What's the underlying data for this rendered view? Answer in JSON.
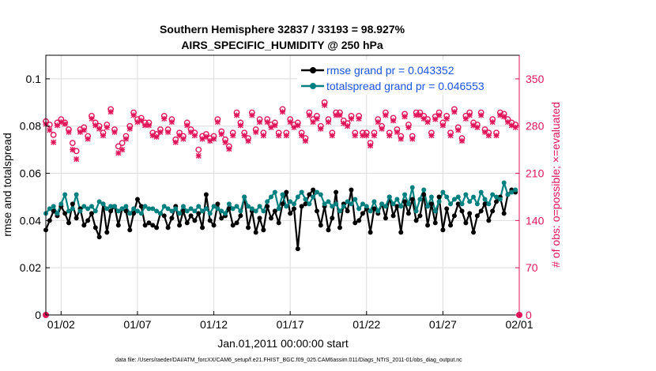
{
  "chart_data": {
    "type": "line",
    "title": "Southern Hemisphere 32837 / 33193 = 98.927%",
    "subtitle": "AIRS_SPECIFIC_HUMIDITY @ 250 hPa",
    "xlabel": "Jan.01,2011 00:00:00 start",
    "ylabel": "rmse and totalspread",
    "y2label": "# of obs: o=possible; ×=evaluated",
    "footer": "data file: /Users/raeder/DAI/ATM_forcXX/CAM6_setup/f.e21.FHIST_BGC.f09_025.CAM6assim.011/Diags_NTrS_2011-01/obs_diag_output.nc",
    "x_range": [
      0.5,
      31.5
    ],
    "ylim": [
      0,
      0.11
    ],
    "y2lim": [
      0,
      385
    ],
    "x_ticks": [
      {
        "x": 1.5,
        "label": "01/02"
      },
      {
        "x": 6.5,
        "label": "01/07"
      },
      {
        "x": 11.5,
        "label": "01/12"
      },
      {
        "x": 16.5,
        "label": "01/17"
      },
      {
        "x": 21.5,
        "label": "01/22"
      },
      {
        "x": 26.5,
        "label": "01/27"
      },
      {
        "x": 31.5,
        "label": "02/01"
      }
    ],
    "y_ticks": [
      "0",
      "0.02",
      "0.04",
      "0.06",
      "0.08",
      "0.1"
    ],
    "y_tick_values": [
      0,
      0.02,
      0.04,
      0.06,
      0.08,
      0.1
    ],
    "y2_ticks": [
      "0",
      "70",
      "140",
      "210",
      "280",
      "350"
    ],
    "y2_tick_values": [
      0,
      70,
      140,
      210,
      280,
      350
    ],
    "grid": true,
    "legend_position": "top-right",
    "colors": {
      "rmse": "#000000",
      "spread": "#008080",
      "obs": "#e0155a",
      "right_axis": "#e0155a",
      "legend_text": "#1a55e0"
    },
    "x": [
      0.5,
      0.75,
      1,
      1.25,
      1.5,
      1.75,
      2,
      2.25,
      2.5,
      2.75,
      3,
      3.25,
      3.5,
      3.75,
      4,
      4.25,
      4.5,
      4.75,
      5,
      5.25,
      5.5,
      5.75,
      6,
      6.25,
      6.5,
      6.75,
      7,
      7.25,
      7.5,
      7.75,
      8,
      8.25,
      8.5,
      8.75,
      9,
      9.25,
      9.5,
      9.75,
      10,
      10.25,
      10.5,
      10.75,
      11,
      11.25,
      11.5,
      11.75,
      12,
      12.25,
      12.5,
      12.75,
      13,
      13.25,
      13.5,
      13.75,
      14,
      14.25,
      14.5,
      14.75,
      15,
      15.25,
      15.5,
      15.75,
      16,
      16.25,
      16.5,
      16.75,
      17,
      17.25,
      17.5,
      17.75,
      18,
      18.25,
      18.5,
      18.75,
      19,
      19.25,
      19.5,
      19.75,
      20,
      20.25,
      20.5,
      20.75,
      21,
      21.25,
      21.5,
      21.75,
      22,
      22.25,
      22.5,
      22.75,
      23,
      23.25,
      23.5,
      23.75,
      24,
      24.25,
      24.5,
      24.75,
      25,
      25.25,
      25.5,
      25.75,
      26,
      26.25,
      26.5,
      26.75,
      27,
      27.25,
      27.5,
      27.75,
      28,
      28.25,
      28.5,
      28.75,
      29,
      29.25,
      29.5,
      29.75,
      30,
      30.25,
      30.5,
      30.75,
      31,
      31.25
    ],
    "series": [
      {
        "name": "rmse grand pr = 0.043352",
        "values": [
          0.036,
          0.04,
          0.044,
          0.042,
          0.046,
          0.043,
          0.039,
          0.047,
          0.041,
          0.045,
          0.038,
          0.04,
          0.043,
          0.037,
          0.033,
          0.047,
          0.035,
          0.044,
          0.046,
          0.038,
          0.045,
          0.044,
          0.036,
          0.043,
          0.049,
          0.046,
          0.038,
          0.039,
          0.038,
          0.037,
          0.043,
          0.042,
          0.037,
          0.041,
          0.046,
          0.038,
          0.044,
          0.039,
          0.042,
          0.04,
          0.043,
          0.037,
          0.051,
          0.04,
          0.038,
          0.047,
          0.041,
          0.042,
          0.045,
          0.038,
          0.039,
          0.042,
          0.05,
          0.037,
          0.044,
          0.035,
          0.041,
          0.036,
          0.046,
          0.041,
          0.044,
          0.039,
          0.047,
          0.052,
          0.043,
          0.045,
          0.028,
          0.046,
          0.047,
          0.051,
          0.053,
          0.044,
          0.038,
          0.046,
          0.036,
          0.041,
          0.052,
          0.037,
          0.047,
          0.044,
          0.053,
          0.039,
          0.04,
          0.043,
          0.045,
          0.035,
          0.045,
          0.043,
          0.047,
          0.041,
          0.05,
          0.042,
          0.046,
          0.035,
          0.048,
          0.043,
          0.049,
          0.04,
          0.042,
          0.051,
          0.038,
          0.047,
          0.039,
          0.05,
          0.036,
          0.045,
          0.038,
          0.042,
          0.047,
          0.044,
          0.039,
          0.043,
          0.035,
          0.042,
          0.044,
          0.047,
          0.04,
          0.044,
          0.048,
          0.05,
          0.043,
          0.051,
          0.053,
          0.052
        ]
      },
      {
        "name": "totalspread grand pr = 0.046553",
        "values": [
          0.043,
          0.045,
          0.046,
          0.043,
          0.047,
          0.051,
          0.044,
          0.045,
          0.051,
          0.044,
          0.046,
          0.045,
          0.046,
          0.044,
          0.048,
          0.047,
          0.045,
          0.046,
          0.046,
          0.044,
          0.045,
          0.046,
          0.043,
          0.045,
          0.044,
          0.043,
          0.046,
          0.045,
          0.045,
          0.044,
          0.043,
          0.046,
          0.045,
          0.044,
          0.045,
          0.043,
          0.046,
          0.044,
          0.045,
          0.044,
          0.046,
          0.044,
          0.045,
          0.043,
          0.046,
          0.045,
          0.044,
          0.043,
          0.047,
          0.045,
          0.046,
          0.044,
          0.05,
          0.046,
          0.045,
          0.044,
          0.046,
          0.044,
          0.048,
          0.05,
          0.052,
          0.045,
          0.051,
          0.046,
          0.048,
          0.047,
          0.05,
          0.052,
          0.049,
          0.047,
          0.05,
          0.052,
          0.051,
          0.047,
          0.048,
          0.046,
          0.047,
          0.044,
          0.046,
          0.048,
          0.047,
          0.049,
          0.045,
          0.047,
          0.046,
          0.044,
          0.048,
          0.044,
          0.047,
          0.046,
          0.05,
          0.047,
          0.049,
          0.046,
          0.051,
          0.047,
          0.054,
          0.044,
          0.049,
          0.053,
          0.046,
          0.05,
          0.044,
          0.048,
          0.052,
          0.05,
          0.047,
          0.049,
          0.05,
          0.047,
          0.051,
          0.048,
          0.05,
          0.047,
          0.052,
          0.049,
          0.047,
          0.051,
          0.05,
          0.049,
          0.056,
          0.051,
          0.052,
          0.053
        ]
      },
      {
        "name": "possible",
        "marker": "o",
        "values": [
          287,
          282,
          267,
          285,
          290,
          285,
          275,
          255,
          243,
          275,
          278,
          265,
          295,
          285,
          280,
          270,
          282,
          305,
          275,
          250,
          255,
          265,
          280,
          300,
          290,
          292,
          285,
          285,
          270,
          268,
          275,
          295,
          275,
          290,
          260,
          270,
          265,
          285,
          275,
          270,
          245,
          265,
          268,
          262,
          265,
          290,
          272,
          260,
          250,
          270,
          300,
          285,
          270,
          262,
          300,
          275,
          290,
          270,
          290,
          282,
          285,
          270,
          305,
          270,
          290,
          282,
          285,
          270,
          262,
          300,
          290,
          295,
          280,
          315,
          290,
          270,
          300,
          300,
          288,
          284,
          295,
          270,
          295,
          270,
          270,
          255,
          270,
          290,
          280,
          300,
          270,
          292,
          275,
          265,
          298,
          282,
          265,
          300,
          300,
          295,
          290,
          270,
          294,
          300,
          285,
          295,
          270,
          305,
          278,
          262,
          295,
          300,
          285,
          282,
          300,
          275,
          270,
          290,
          270,
          300,
          298,
          290,
          285,
          282
        ]
      },
      {
        "name": "evaluated",
        "marker": "x",
        "values": [
          283,
          274,
          256,
          281,
          286,
          283,
          271,
          245,
          231,
          271,
          274,
          261,
          291,
          281,
          276,
          266,
          278,
          301,
          271,
          240,
          245,
          261,
          276,
          296,
          286,
          288,
          281,
          281,
          266,
          264,
          271,
          291,
          271,
          286,
          256,
          266,
          261,
          281,
          271,
          266,
          236,
          261,
          264,
          258,
          261,
          286,
          268,
          256,
          246,
          266,
          296,
          281,
          266,
          258,
          296,
          271,
          286,
          266,
          286,
          278,
          281,
          266,
          301,
          266,
          286,
          278,
          281,
          266,
          258,
          296,
          286,
          291,
          276,
          311,
          286,
          266,
          296,
          296,
          284,
          280,
          291,
          266,
          291,
          266,
          266,
          251,
          266,
          286,
          276,
          296,
          266,
          288,
          271,
          261,
          294,
          278,
          261,
          296,
          296,
          291,
          286,
          266,
          290,
          296,
          281,
          291,
          266,
          301,
          274,
          258,
          291,
          296,
          281,
          278,
          296,
          271,
          266,
          286,
          266,
          296,
          294,
          286,
          281,
          278
        ]
      }
    ]
  }
}
